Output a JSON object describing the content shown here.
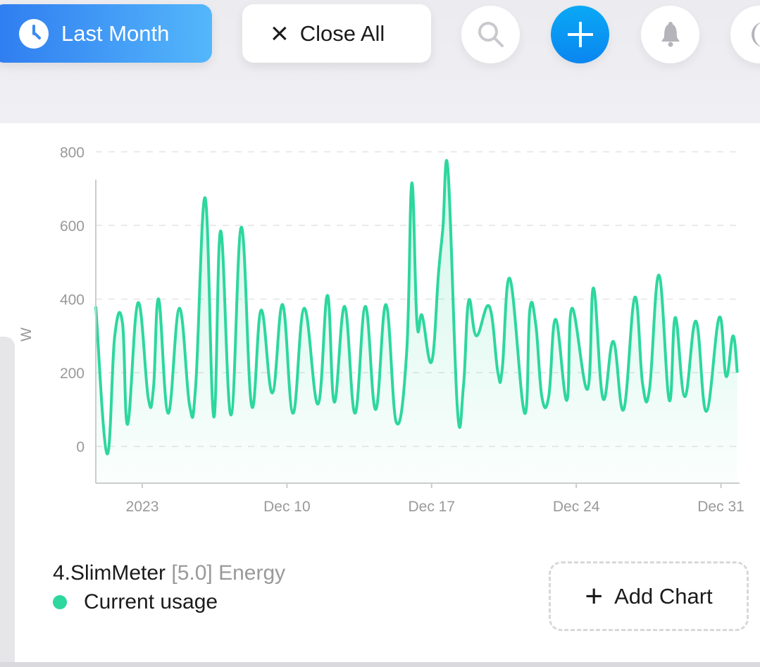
{
  "toolbar": {
    "time_range_label": "Last Month",
    "close_all_label": "Close All",
    "close_icon": "×",
    "icons": [
      "clock-icon",
      "close-icon",
      "search-icon",
      "plus-icon",
      "bell-icon",
      "moon-icon"
    ],
    "accent_color": "#2f7cf0"
  },
  "panel": {
    "title_main": "4.SlimMeter",
    "title_version": "[5.0]",
    "title_suffix": "Energy",
    "add_chart_label": "Add Chart",
    "add_chart_icon": "+"
  },
  "chart_data": {
    "type": "area",
    "ylabel": "W",
    "xlabel": "",
    "ylim": [
      -100,
      800
    ],
    "yticks": [
      "800",
      "600",
      "400",
      "200",
      "0"
    ],
    "xlim": [
      "2023-11-30T18:00",
      "2023-12-31T20:00"
    ],
    "xticks": [
      {
        "date": "2023-12-03",
        "label": "2023"
      },
      {
        "date": "2023-12-10",
        "label": "Dec 10"
      },
      {
        "date": "2023-12-17",
        "label": "Dec 17"
      },
      {
        "date": "2023-12-24",
        "label": "Dec 24"
      },
      {
        "date": "2023-12-31",
        "label": "Dec 31"
      }
    ],
    "grid": true,
    "series": [
      {
        "name": "Current usage",
        "color": "#2dd79d",
        "points": [
          [
            "2023-11-30T18:00",
            380
          ],
          [
            "2023-12-01T07:00",
            -20
          ],
          [
            "2023-12-01T16:00",
            300
          ],
          [
            "2023-12-02T01:00",
            335
          ],
          [
            "2023-12-02T07:00",
            60
          ],
          [
            "2023-12-02T19:00",
            390
          ],
          [
            "2023-12-03T07:00",
            130
          ],
          [
            "2023-12-03T13:00",
            160
          ],
          [
            "2023-12-03T19:00",
            400
          ],
          [
            "2023-12-04T06:00",
            90
          ],
          [
            "2023-12-04T19:00",
            375
          ],
          [
            "2023-12-05T07:00",
            110
          ],
          [
            "2023-12-05T14:00",
            165
          ],
          [
            "2023-12-06T01:00",
            675
          ],
          [
            "2023-12-06T11:00",
            80
          ],
          [
            "2023-12-06T19:00",
            585
          ],
          [
            "2023-12-07T07:00",
            85
          ],
          [
            "2023-12-07T19:00",
            595
          ],
          [
            "2023-12-08T07:00",
            110
          ],
          [
            "2023-12-08T18:00",
            370
          ],
          [
            "2023-12-09T07:00",
            145
          ],
          [
            "2023-12-09T19:00",
            385
          ],
          [
            "2023-12-10T07:00",
            90
          ],
          [
            "2023-12-10T20:00",
            375
          ],
          [
            "2023-12-11T12:00",
            115
          ],
          [
            "2023-12-11T23:00",
            410
          ],
          [
            "2023-12-12T07:00",
            120
          ],
          [
            "2023-12-12T19:00",
            380
          ],
          [
            "2023-12-13T07:00",
            90
          ],
          [
            "2023-12-13T19:00",
            380
          ],
          [
            "2023-12-14T07:00",
            100
          ],
          [
            "2023-12-14T19:00",
            385
          ],
          [
            "2023-12-15T07:00",
            65
          ],
          [
            "2023-12-15T19:00",
            255
          ],
          [
            "2023-12-16T01:00",
            715
          ],
          [
            "2023-12-16T07:00",
            335
          ],
          [
            "2023-12-16T13:00",
            355
          ],
          [
            "2023-12-17T00:00",
            230
          ],
          [
            "2023-12-17T08:00",
            470
          ],
          [
            "2023-12-17T13:00",
            590
          ],
          [
            "2023-12-17T19:00",
            750
          ],
          [
            "2023-12-18T06:00",
            100
          ],
          [
            "2023-12-18T13:00",
            165
          ],
          [
            "2023-12-18T19:00",
            395
          ],
          [
            "2023-12-19T04:00",
            300
          ],
          [
            "2023-12-19T19:00",
            380
          ],
          [
            "2023-12-20T05:00",
            200
          ],
          [
            "2023-12-20T10:00",
            210
          ],
          [
            "2023-12-20T19:00",
            455
          ],
          [
            "2023-12-21T12:00",
            90
          ],
          [
            "2023-12-21T18:00",
            370
          ],
          [
            "2023-12-22T01:00",
            330
          ],
          [
            "2023-12-22T08:00",
            135
          ],
          [
            "2023-12-22T16:00",
            135
          ],
          [
            "2023-12-23T00:00",
            345
          ],
          [
            "2023-12-23T13:00",
            125
          ],
          [
            "2023-12-23T19:00",
            375
          ],
          [
            "2023-12-24T13:00",
            155
          ],
          [
            "2023-12-24T20:00",
            430
          ],
          [
            "2023-12-25T07:00",
            130
          ],
          [
            "2023-12-25T19:00",
            285
          ],
          [
            "2023-12-26T07:00",
            100
          ],
          [
            "2023-12-26T20:00",
            405
          ],
          [
            "2023-12-27T05:00",
            170
          ],
          [
            "2023-12-27T13:00",
            155
          ],
          [
            "2023-12-28T00:00",
            465
          ],
          [
            "2023-12-28T12:00",
            125
          ],
          [
            "2023-12-28T19:00",
            350
          ],
          [
            "2023-12-29T06:00",
            135
          ],
          [
            "2023-12-29T19:00",
            340
          ],
          [
            "2023-12-30T07:00",
            95
          ],
          [
            "2023-12-30T22:00",
            350
          ],
          [
            "2023-12-31T06:00",
            190
          ],
          [
            "2023-12-31T14:00",
            300
          ],
          [
            "2023-12-31T19:00",
            200
          ]
        ]
      }
    ]
  }
}
